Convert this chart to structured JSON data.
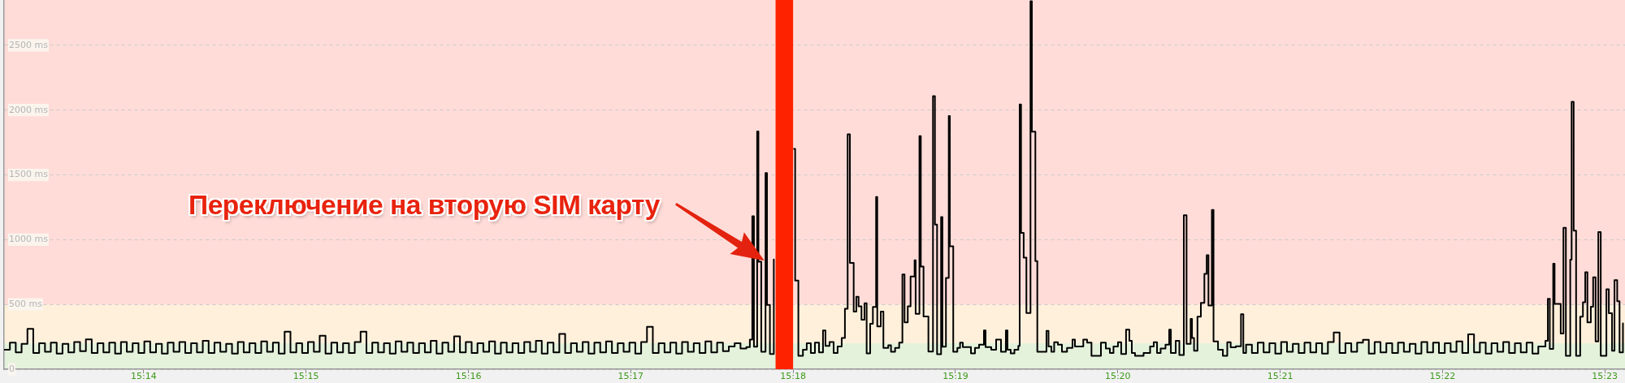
{
  "chart_data": {
    "type": "step",
    "color": "#000000",
    "marker": "none",
    "grid": "y",
    "xlim": [
      15.219,
      15.3854
    ],
    "xticks": [
      {
        "value": 15.23333,
        "label": "15:14"
      },
      {
        "value": 15.25,
        "label": "15:15"
      },
      {
        "value": 15.26667,
        "label": "15:16"
      },
      {
        "value": 15.28333,
        "label": "15:17"
      },
      {
        "value": 15.3,
        "label": "15:18"
      },
      {
        "value": 15.31667,
        "label": "15:19"
      },
      {
        "value": 15.33333,
        "label": "15:20"
      },
      {
        "value": 15.35,
        "label": "15:21"
      },
      {
        "value": 15.36667,
        "label": "15:22"
      },
      {
        "value": 15.38333,
        "label": "15:23"
      }
    ],
    "ylim": [
      0,
      2850
    ],
    "yticks": [
      0,
      {
        "value": 500,
        "label": "500 ms"
      },
      {
        "value": 1000,
        "label": "1000 ms"
      },
      {
        "value": 1500,
        "label": "1500 ms"
      },
      {
        "value": 2000,
        "label": "2000 ms"
      },
      {
        "value": 2500,
        "label": "2500 ms"
      }
    ],
    "bands": [
      {
        "axis": "y",
        "from": 0,
        "to": 200,
        "color": "#e4f2dc"
      },
      {
        "axis": "y",
        "from": 200,
        "to": 500,
        "color": "#fff0db"
      },
      {
        "axis": "y",
        "from": 500,
        "to": 2850,
        "color": "#ffdcd8"
      },
      {
        "axis": "x",
        "from": 15.2982,
        "to": 15.3,
        "color": "#ff2200"
      }
    ],
    "annotations": [
      "Переключение на вторую SIM карту"
    ],
    "x": [
      15.219,
      15.2196,
      15.2202,
      15.2208,
      15.2214,
      15.222,
      15.2226,
      15.2232,
      15.2238,
      15.2244,
      15.225,
      15.2256,
      15.2262,
      15.2268,
      15.2274,
      15.228,
      15.2286,
      15.2292,
      15.2298,
      15.2304,
      15.231,
      15.2316,
      15.2322,
      15.2328,
      15.2334,
      15.234,
      15.2346,
      15.2352,
      15.2358,
      15.2364,
      15.237,
      15.2376,
      15.2382,
      15.2388,
      15.2394,
      15.24,
      15.2406,
      15.2412,
      15.2418,
      15.2424,
      15.243,
      15.2436,
      15.2442,
      15.2448,
      15.2454,
      15.246,
      15.2466,
      15.2472,
      15.2478,
      15.2484,
      15.249,
      15.2496,
      15.2502,
      15.2508,
      15.2514,
      15.252,
      15.2526,
      15.2532,
      15.2538,
      15.2544,
      15.255,
      15.2556,
      15.2562,
      15.2568,
      15.2574,
      15.258,
      15.2586,
      15.2592,
      15.2598,
      15.2604,
      15.261,
      15.2616,
      15.2622,
      15.2628,
      15.2634,
      15.264,
      15.2646,
      15.2652,
      15.2658,
      15.2664,
      15.267,
      15.2676,
      15.2682,
      15.2688,
      15.2694,
      15.27,
      15.2706,
      15.2712,
      15.2718,
      15.2724,
      15.273,
      15.2736,
      15.2742,
      15.2748,
      15.2754,
      15.276,
      15.2766,
      15.2772,
      15.2778,
      15.2784,
      15.279,
      15.2796,
      15.2802,
      15.2808,
      15.2814,
      15.282,
      15.2826,
      15.2832,
      15.2838,
      15.2844,
      15.285,
      15.2856,
      15.2862,
      15.2868,
      15.2874,
      15.288,
      15.2886,
      15.2892,
      15.2898,
      15.2904,
      15.291,
      15.2916,
      15.2922,
      15.2928,
      15.2934,
      15.294,
      15.2946,
      15.2952,
      15.29556,
      15.29581,
      15.29598,
      15.29631,
      15.29644,
      15.29673,
      15.29717,
      15.29732,
      15.29762,
      15.29802,
      15.29815,
      15.30009,
      15.30021,
      15.30054,
      15.30101,
      15.3014,
      15.30182,
      15.30224,
      15.30266,
      15.30307,
      15.30332,
      15.30374,
      15.30416,
      15.30457,
      15.30499,
      15.30532,
      15.3056,
      15.30583,
      15.30622,
      15.30649,
      15.30672,
      15.30702,
      15.30733,
      15.30755,
      15.30791,
      15.30819,
      15.30852,
      15.30864,
      15.309,
      15.30927,
      15.30977,
      15.31005,
      15.31047,
      15.31089,
      15.31122,
      15.31144,
      15.31177,
      15.31206,
      15.31247,
      15.31258,
      15.31297,
      15.31311,
      15.31339,
      15.31389,
      15.31436,
      15.31456,
      15.31478,
      15.31519,
      15.31533,
      15.31569,
      15.31598,
      15.31609,
      15.31644,
      15.31686,
      15.31714,
      15.31742,
      15.31826,
      15.31867,
      15.31909,
      15.31959,
      15.31976,
      15.32034,
      15.32084,
      15.32134,
      15.32184,
      15.32201,
      15.32234,
      15.32272,
      15.32312,
      15.32326,
      15.3234,
      15.32367,
      15.32395,
      15.32437,
      15.32451,
      15.32487,
      15.32507,
      15.32601,
      15.32622,
      15.32651,
      15.3268,
      15.32718,
      15.3276,
      15.32812,
      15.32868,
      15.32893,
      15.32979,
      15.33018,
      15.33063,
      15.3316,
      15.3321,
      15.33252,
      15.33289,
      15.33335,
      15.33368,
      15.33418,
      15.33452,
      15.33477,
      15.3351,
      15.33598,
      15.33665,
      15.33702,
      15.33736,
      15.33773,
      15.33823,
      15.33861,
      15.33878,
      15.33928,
      15.33965,
      15.34011,
      15.34039,
      15.34081,
      15.34095,
      15.34116,
      15.34151,
      15.34186,
      15.34222,
      15.34246,
      15.34264,
      15.34299,
      15.34316,
      15.34362,
      15.34412,
      15.34457,
      15.34492,
      15.34545,
      15.34598,
      15.34622,
      15.3465,
      15.3471,
      15.3477,
      15.3483,
      15.3489,
      15.3495,
      15.3501,
      15.3507,
      15.3513,
      15.3519,
      15.3525,
      15.3531,
      15.3537,
      15.3543,
      15.3549,
      15.3555,
      15.3561,
      15.3567,
      15.3573,
      15.3579,
      15.3585,
      15.3591,
      15.3597,
      15.3603,
      15.3609,
      15.3615,
      15.3621,
      15.3627,
      15.3633,
      15.3639,
      15.3645,
      15.3651,
      15.3657,
      15.3663,
      15.3669,
      15.3675,
      15.3681,
      15.3687,
      15.3693,
      15.3699,
      15.3705,
      15.3711,
      15.3717,
      15.3723,
      15.3729,
      15.3735,
      15.3741,
      15.3747,
      15.3753,
      15.3759,
      15.3765,
      15.37723,
      15.37748,
      15.37768,
      15.37803,
      15.37817,
      15.3788,
      15.37908,
      15.37933,
      15.37978,
      15.37992,
      15.38013,
      15.38038,
      15.3808,
      15.38108,
      15.38132,
      15.38154,
      15.38189,
      15.38213,
      15.38238,
      15.38266,
      15.38291,
      15.38349,
      15.38374,
      15.38407,
      15.38432,
      15.3846,
      15.38484,
      15.38519
    ],
    "values": [
      150,
      205,
      130,
      195,
      312,
      125,
      200,
      135,
      205,
      120,
      195,
      130,
      210,
      140,
      230,
      125,
      200,
      130,
      205,
      120,
      210,
      135,
      200,
      125,
      215,
      130,
      195,
      120,
      205,
      135,
      210,
      125,
      200,
      130,
      220,
      125,
      205,
      135,
      195,
      120,
      210,
      130,
      200,
      125,
      215,
      135,
      205,
      120,
      290,
      130,
      200,
      125,
      210,
      135,
      259,
      120,
      205,
      130,
      200,
      125,
      210,
      290,
      125,
      205,
      130,
      200,
      120,
      215,
      135,
      205,
      125,
      200,
      130,
      220,
      120,
      205,
      135,
      253,
      130,
      210,
      125,
      200,
      135,
      215,
      120,
      205,
      130,
      200,
      125,
      210,
      135,
      220,
      120,
      205,
      130,
      272,
      125,
      200,
      135,
      210,
      120,
      205,
      130,
      215,
      125,
      200,
      135,
      205,
      120,
      210,
      328,
      125,
      200,
      130,
      205,
      120,
      210,
      135,
      200,
      125,
      215,
      130,
      205,
      140,
      175,
      200,
      160,
      170,
      228,
      1180,
      174,
      1836,
      830,
      134,
      1515,
      497,
      118,
      847,
      null,
      1701,
      684,
      103,
      150,
      200,
      125,
      205,
      130,
      299,
      180,
      210,
      125,
      175,
      241,
      466,
      1814,
      820,
      445,
      559,
      486,
      382,
      509,
      122,
      351,
      480,
      1330,
      330,
      445,
      164,
      185,
      134,
      164,
      205,
      732,
      361,
      486,
      716,
      841,
      428,
      1799,
      793,
      407,
      137,
      2107,
      1116,
      116,
      1174,
      174,
      705,
      1955,
      949,
      134,
      164,
      205,
      170,
      122,
      164,
      190,
      299,
      170,
      150,
      228,
      134,
      299,
      150,
      122,
      150,
      180,
      2043,
      1053,
      861,
      434,
      2840,
      1834,
      834,
      134,
      296,
      175,
      134,
      209,
      190,
      134,
      164,
      228,
      175,
      228,
      205,
      103,
      205,
      160,
      125,
      175,
      209,
      117,
      306,
      220,
      125,
      104,
      125,
      175,
      209,
      125,
      160,
      190,
      306,
      125,
      220,
      110,
      1188,
      196,
      388,
      241,
      143,
      406,
      512,
      736,
      880,
      491,
      1230,
      214,
      151,
      104,
      209,
      169,
      177,
      425,
      125,
      190,
      125,
      205,
      130,
      200,
      120,
      210,
      135,
      195,
      125,
      205,
      130,
      200,
      120,
      210,
      283,
      125,
      200,
      135,
      205,
      227,
      120,
      210,
      130,
      200,
      125,
      205,
      135,
      195,
      120,
      210,
      130,
      205,
      125,
      200,
      135,
      215,
      125,
      270,
      130,
      205,
      120,
      200,
      135,
      210,
      125,
      200,
      130,
      205,
      120,
      175,
      220,
      543,
      156,
      814,
      504,
      275,
      1091,
      104,
      846,
      2064,
      1069,
      104,
      406,
      517,
      749,
      362,
      483,
      709,
      214,
      1059,
      104,
      617,
      432,
      143,
      688,
      525,
      130,
      354
    ]
  }
}
